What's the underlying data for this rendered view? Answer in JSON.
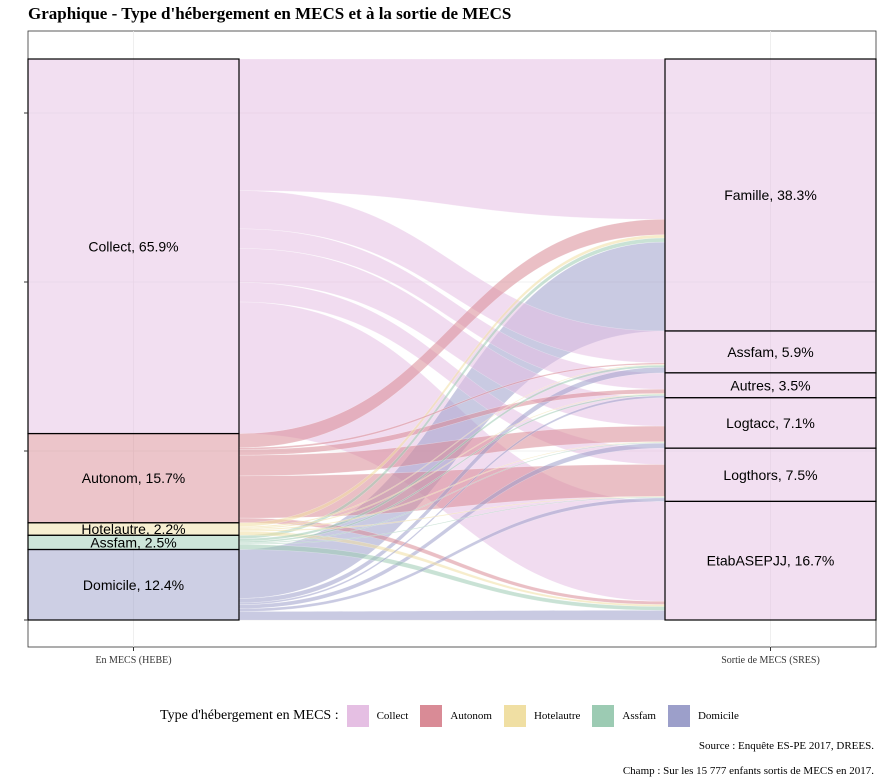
{
  "title": "Graphique - Type d'hébergement en MECS et à la sortie de MECS",
  "source": "Source : Enquête ES-PE 2017, DREES.",
  "champ": "Champ : Sur les 15 777 enfants sortis de MECS en 2017.",
  "legend": {
    "title": "Type d'hébergement en MECS :",
    "items": [
      {
        "label": "Collect",
        "color": "#e5bfe3"
      },
      {
        "label": "Autonom",
        "color": "#d98b96"
      },
      {
        "label": "Hotelautre",
        "color": "#f0dfa3"
      },
      {
        "label": "Assfam",
        "color": "#9ccbb3"
      },
      {
        "label": "Domicile",
        "color": "#9c9fca"
      }
    ]
  },
  "chart_data": {
    "type": "alluvial",
    "axes": [
      "En MECS (HEBE)",
      "Sortie de MECS (SRES)"
    ],
    "left_nodes": [
      {
        "name": "Collect",
        "pct": 65.9,
        "label": "Collect, 65.9%"
      },
      {
        "name": "Autonom",
        "pct": 15.7,
        "label": "Autonom, 15.7%"
      },
      {
        "name": "Hotelautre",
        "pct": 2.2,
        "label": "Hotelautre, 2.2%"
      },
      {
        "name": "Assfam",
        "pct": 2.5,
        "label": "Assfam, 2.5%"
      },
      {
        "name": "Domicile",
        "pct": 12.4,
        "label": "Domicile, 12.4%"
      }
    ],
    "right_nodes": [
      {
        "name": "Famille",
        "pct": 38.3,
        "label": "Famille, 38.3%"
      },
      {
        "name": "Assfam",
        "pct": 5.9,
        "label": "Assfam, 5.9%"
      },
      {
        "name": "Autres",
        "pct": 3.5,
        "label": "Autres, 3.5%"
      },
      {
        "name": "Logtacc",
        "pct": 7.1,
        "label": "Logtacc, 7.1%"
      },
      {
        "name": "Logthors",
        "pct": 7.5,
        "label": "Logthors, 7.5%"
      },
      {
        "name": "EtabASEPJJ",
        "pct": 16.7,
        "label": "EtabASEPJJ, 16.7%"
      }
    ],
    "flows": [
      {
        "from": "Collect",
        "to": "Famille",
        "value": 15.5
      },
      {
        "from": "Collect",
        "to": "Assfam",
        "value": 4.5
      },
      {
        "from": "Collect",
        "to": "Autres",
        "value": 2.3
      },
      {
        "from": "Collect",
        "to": "Logtacc",
        "value": 4.0
      },
      {
        "from": "Collect",
        "to": "Logthors",
        "value": 2.3
      },
      {
        "from": "Collect",
        "to": "EtabASEPJJ",
        "value": 15.5
      },
      {
        "from": "Autonom",
        "to": "Famille",
        "value": 1.5
      },
      {
        "from": "Autonom",
        "to": "Assfam",
        "value": 0.2
      },
      {
        "from": "Autonom",
        "to": "Autres",
        "value": 0.6
      },
      {
        "from": "Autonom",
        "to": "Logtacc",
        "value": 2.2
      },
      {
        "from": "Autonom",
        "to": "Logthors",
        "value": 4.5
      },
      {
        "from": "Autonom",
        "to": "EtabASEPJJ",
        "value": 0.5
      },
      {
        "from": "Hotelautre",
        "to": "Famille",
        "value": 0.3
      },
      {
        "from": "Hotelautre",
        "to": "Assfam",
        "value": 0.1
      },
      {
        "from": "Hotelautre",
        "to": "Autres",
        "value": 0.1
      },
      {
        "from": "Hotelautre",
        "to": "Logtacc",
        "value": 0.1
      },
      {
        "from": "Hotelautre",
        "to": "Logthors",
        "value": 0.1
      },
      {
        "from": "Hotelautre",
        "to": "EtabASEPJJ",
        "value": 0.3
      },
      {
        "from": "Assfam",
        "to": "Famille",
        "value": 0.4
      },
      {
        "from": "Assfam",
        "to": "Assfam",
        "value": 0.3
      },
      {
        "from": "Assfam",
        "to": "Autres",
        "value": 0.2
      },
      {
        "from": "Assfam",
        "to": "Logtacc",
        "value": 0.1
      },
      {
        "from": "Assfam",
        "to": "Logthors",
        "value": 0.1
      },
      {
        "from": "Assfam",
        "to": "EtabASEPJJ",
        "value": 0.6
      },
      {
        "from": "Domicile",
        "to": "Famille",
        "value": 8.6
      },
      {
        "from": "Domicile",
        "to": "Assfam",
        "value": 0.8
      },
      {
        "from": "Domicile",
        "to": "Autres",
        "value": 0.3
      },
      {
        "from": "Domicile",
        "to": "Logtacc",
        "value": 0.7
      },
      {
        "from": "Domicile",
        "to": "Logthors",
        "value": 0.5
      },
      {
        "from": "Domicile",
        "to": "EtabASEPJJ",
        "value": 1.5
      }
    ],
    "grid": true
  }
}
